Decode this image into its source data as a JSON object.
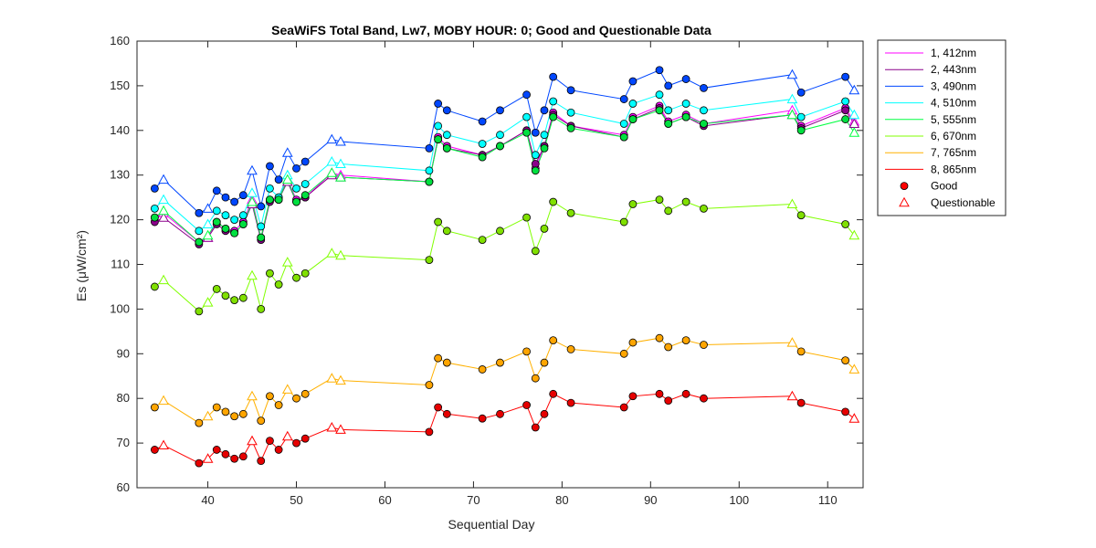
{
  "chart_data": {
    "type": "line",
    "title": "SeaWiFS Total Band,  Lw7, MOBY HOUR: 0;  Good and Questionable Data",
    "xlabel": "Sequential Day",
    "ylabel": "Es (μW/cm²)",
    "xlim": [
      32,
      114
    ],
    "ylim": [
      60,
      160
    ],
    "xticks": [
      40,
      50,
      60,
      70,
      80,
      90,
      100,
      110
    ],
    "yticks": [
      60,
      70,
      80,
      90,
      100,
      110,
      120,
      130,
      140,
      150,
      160
    ],
    "grid": false,
    "legend_position": "outside-right",
    "x": [
      34,
      35,
      39,
      40,
      41,
      42,
      43,
      44,
      45,
      46,
      47,
      48,
      49,
      50,
      51,
      54,
      55,
      65,
      66,
      67,
      71,
      73,
      76,
      77,
      78,
      79,
      81,
      87,
      88,
      91,
      92,
      94,
      96,
      106,
      107,
      112,
      113
    ],
    "quality": [
      "G",
      "Q",
      "G",
      "Q",
      "G",
      "G",
      "G",
      "G",
      "Q",
      "G",
      "G",
      "G",
      "Q",
      "G",
      "G",
      "Q",
      "Q",
      "G",
      "G",
      "G",
      "G",
      "G",
      "G",
      "G",
      "G",
      "G",
      "G",
      "G",
      "G",
      "G",
      "G",
      "G",
      "G",
      "Q",
      "G",
      "G",
      "Q"
    ],
    "series": [
      {
        "name": "1, 412nm",
        "color": "#ff00ff",
        "marker_fill": "#ff00ff",
        "values": [
          120.5,
          121.5,
          115,
          116,
          119.5,
          118,
          117.5,
          119.5,
          124.5,
          116,
          124.5,
          125,
          129,
          124.5,
          125,
          130.5,
          130,
          128.5,
          138.5,
          136.5,
          134.5,
          136.5,
          140,
          131.5,
          136.5,
          144,
          141,
          139,
          143,
          145.5,
          142,
          143.5,
          141.5,
          144.5,
          141,
          145,
          142
        ]
      },
      {
        "name": "2, 443nm",
        "color": "#8b008b",
        "marker_fill": "#8b008b",
        "values": [
          119.5,
          120.5,
          114.5,
          116,
          119,
          117.5,
          117,
          119,
          123.5,
          115.5,
          124,
          124.5,
          128.5,
          124,
          125,
          130,
          129.5,
          128.5,
          138,
          136,
          134.5,
          136.5,
          140,
          132.5,
          136.5,
          143.5,
          141,
          138.5,
          142.5,
          145,
          141.5,
          143,
          141,
          143.5,
          140.5,
          144.5,
          141.5
        ]
      },
      {
        "name": "3, 490nm",
        "color": "#0047ff",
        "marker_fill": "#0047ff",
        "values": [
          127,
          129,
          121.5,
          122.5,
          126.5,
          125,
          124,
          125.5,
          131,
          123,
          132,
          129,
          135,
          131.5,
          133,
          138,
          137.5,
          136,
          146,
          144.5,
          142,
          144.5,
          148,
          139.5,
          144.5,
          152,
          149,
          147,
          151,
          153.5,
          150,
          151.5,
          149.5,
          152.5,
          148.5,
          152,
          149
        ]
      },
      {
        "name": "4, 510nm",
        "color": "#00ffff",
        "marker_fill": "#00ffff",
        "values": [
          122.5,
          124.5,
          117.5,
          119,
          122,
          121,
          120,
          121,
          126,
          118.5,
          127,
          125,
          130,
          127,
          128,
          133,
          132.5,
          131,
          141,
          139,
          137,
          139,
          143,
          134.5,
          139,
          146.5,
          144,
          141.5,
          146,
          148,
          144.5,
          146,
          144.5,
          147,
          143,
          146.5,
          143.5
        ]
      },
      {
        "name": "5, 555nm",
        "color": "#00ff40",
        "marker_fill": "#00e040",
        "values": [
          120.5,
          122,
          115,
          116.5,
          119.5,
          118,
          117,
          119,
          124,
          116,
          124.5,
          124.5,
          129,
          124,
          125.5,
          130.5,
          129.5,
          128.5,
          138,
          136,
          134,
          136.5,
          139.5,
          131,
          136,
          143,
          140.5,
          138.5,
          142.5,
          144.5,
          141.5,
          143,
          141.5,
          143.5,
          140,
          142.5,
          139.5
        ]
      },
      {
        "name": "6, 670nm",
        "color": "#80ff00",
        "marker_fill": "#80e000",
        "values": [
          105,
          106.5,
          99.5,
          101.5,
          104.5,
          103,
          102,
          102.5,
          107.5,
          100,
          108,
          105.5,
          110.5,
          107,
          108,
          112.5,
          112,
          111,
          119.5,
          117.5,
          115.5,
          117.5,
          120.5,
          113,
          118,
          124,
          121.5,
          119.5,
          123.5,
          124.5,
          122,
          124,
          122.5,
          123.5,
          121,
          119,
          116.5
        ]
      },
      {
        "name": "7, 765nm",
        "color": "#ffb000",
        "marker_fill": "#ffa500",
        "values": [
          78,
          79.5,
          74.5,
          76,
          78,
          77,
          76,
          76.5,
          80.5,
          75,
          80.5,
          78.5,
          82,
          80,
          81,
          84.5,
          84,
          83,
          89,
          88,
          86.5,
          88,
          90.5,
          84.5,
          88,
          93,
          91,
          90,
          92.5,
          93.5,
          91.5,
          93,
          92,
          92.5,
          90.5,
          88.5,
          86.5
        ]
      },
      {
        "name": "8, 865nm",
        "color": "#ff0000",
        "marker_fill": "#e60000",
        "values": [
          68.5,
          69.5,
          65.5,
          66.5,
          68.5,
          67.5,
          66.5,
          67,
          70.5,
          66,
          70.5,
          68.5,
          71.5,
          70,
          71,
          73.5,
          73,
          72.5,
          78,
          76.5,
          75.5,
          76.5,
          78.5,
          73.5,
          76.5,
          81,
          79,
          78,
          80.5,
          81,
          79.5,
          81,
          80,
          80.5,
          79,
          77,
          75.5
        ]
      }
    ],
    "legend_entries": [
      {
        "label": "1, 412nm",
        "kind": "line",
        "color": "#ff00ff"
      },
      {
        "label": "2, 443nm",
        "kind": "line",
        "color": "#8b008b"
      },
      {
        "label": "3, 490nm",
        "kind": "line",
        "color": "#0047ff"
      },
      {
        "label": "4, 510nm",
        "kind": "line",
        "color": "#00ffff"
      },
      {
        "label": "5, 555nm",
        "kind": "line",
        "color": "#00ff40"
      },
      {
        "label": "6, 670nm",
        "kind": "line",
        "color": "#80ff00"
      },
      {
        "label": "7, 765nm",
        "kind": "line",
        "color": "#ffb000"
      },
      {
        "label": "8, 865nm",
        "kind": "line",
        "color": "#ff0000"
      },
      {
        "label": "Good",
        "kind": "circle",
        "color": "#ff0000"
      },
      {
        "label": "Questionable",
        "kind": "triangle",
        "color": "#ff0000"
      }
    ]
  }
}
